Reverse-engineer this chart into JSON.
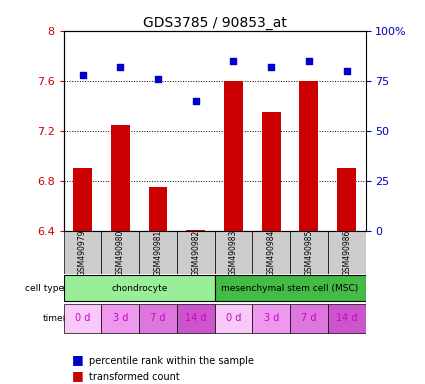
{
  "title": "GDS3785 / 90853_at",
  "samples": [
    "GSM490979",
    "GSM490980",
    "GSM490981",
    "GSM490982",
    "GSM490983",
    "GSM490984",
    "GSM490985",
    "GSM490986"
  ],
  "bar_values": [
    6.9,
    7.25,
    6.75,
    6.41,
    7.6,
    7.35,
    7.6,
    6.9
  ],
  "percentile_values": [
    78,
    82,
    76,
    65,
    85,
    82,
    85,
    80
  ],
  "bar_color": "#cc0000",
  "percentile_color": "#0000cc",
  "ylim_left": [
    6.4,
    8.0
  ],
  "ylim_right": [
    0,
    100
  ],
  "yticks_left": [
    6.4,
    6.8,
    7.2,
    7.6,
    8.0
  ],
  "ytick_labels_left": [
    "6.4",
    "6.8",
    "7.2",
    "7.6",
    "8"
  ],
  "yticks_right": [
    0,
    25,
    50,
    75,
    100
  ],
  "ytick_labels_right": [
    "0",
    "25",
    "50",
    "75",
    "100%"
  ],
  "cell_type_labels": [
    {
      "label": "chondrocyte",
      "start": 0,
      "end": 4,
      "color": "#99ee99"
    },
    {
      "label": "mesenchymal stem cell (MSC)",
      "start": 4,
      "end": 8,
      "color": "#44bb44"
    }
  ],
  "time_labels": [
    "0 d",
    "3 d",
    "7 d",
    "14 d",
    "0 d",
    "3 d",
    "7 d",
    "14 d"
  ],
  "time_colors": [
    "#f8c8f8",
    "#ee99ee",
    "#dd77dd",
    "#cc55cc",
    "#f8c8f8",
    "#ee99ee",
    "#dd77dd",
    "#cc55cc"
  ],
  "legend_bar_label": "transformed count",
  "legend_pct_label": "percentile rank within the sample"
}
